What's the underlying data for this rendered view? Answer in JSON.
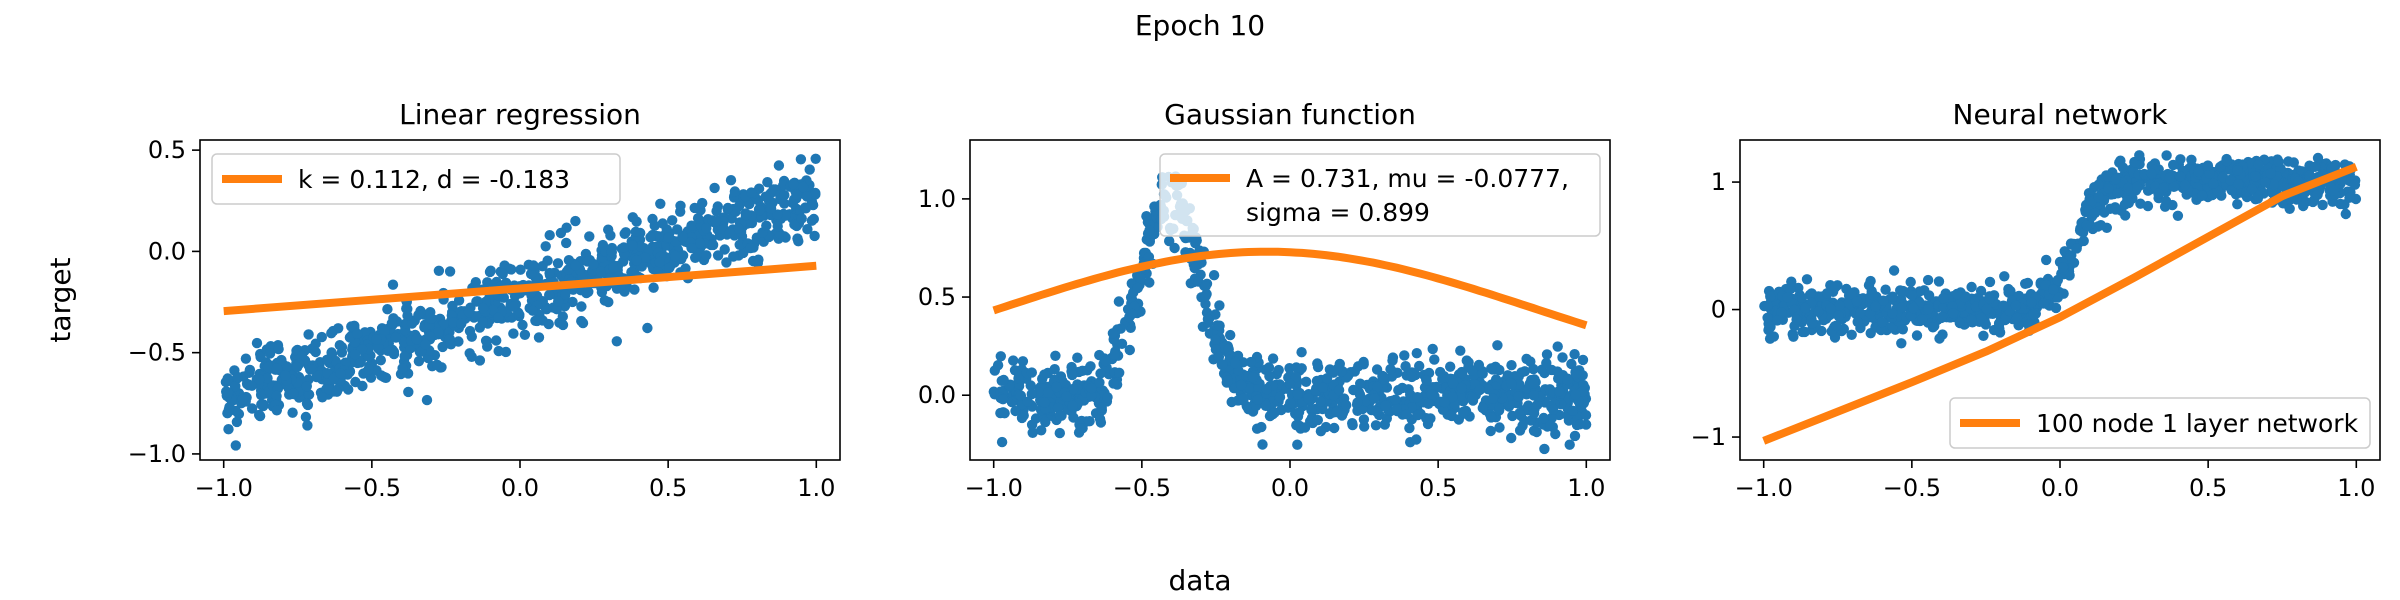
{
  "figure": {
    "suptitle": "Epoch 10",
    "shared_xlabel": "data",
    "shared_ylabel": "target"
  },
  "colors": {
    "scatter": "#1f77b4",
    "fit_line": "#ff7f0e",
    "axes": "#000000"
  },
  "chart_data": [
    {
      "type": "scatter",
      "title": "Linear regression",
      "xlim": [
        -1.08,
        1.08
      ],
      "ylim": [
        -1.03,
        0.55
      ],
      "xticks": [
        -1.0,
        -0.5,
        0.0,
        0.5,
        1.0
      ],
      "xtick_labels": [
        "−1.0",
        "−0.5",
        "0.0",
        "0.5",
        "1.0"
      ],
      "yticks": [
        -1.0,
        -0.5,
        0.0,
        0.5
      ],
      "ytick_labels": [
        "−1.0",
        "−0.5",
        "0.0",
        "0.5"
      ],
      "legend_position": "top-left",
      "series": [
        {
          "kind": "scatter",
          "x_range": [
            -1.0,
            1.0
          ],
          "n_points": 1000,
          "trend": "linear",
          "slope": 0.5,
          "intercept": -0.23,
          "noise_std": 0.09
        },
        {
          "kind": "line",
          "name": "k = 0.112, d = -0.183",
          "x": [
            -1.0,
            1.0
          ],
          "y": [
            -0.295,
            -0.071
          ]
        }
      ]
    },
    {
      "type": "scatter",
      "title": "Gaussian function",
      "xlim": [
        -1.08,
        1.08
      ],
      "ylim": [
        -0.33,
        1.3
      ],
      "xticks": [
        -1.0,
        -0.5,
        0.0,
        0.5,
        1.0
      ],
      "xtick_labels": [
        "−1.0",
        "−0.5",
        "0.0",
        "0.5",
        "1.0"
      ],
      "yticks": [
        0.0,
        0.5,
        1.0
      ],
      "ytick_labels": [
        "0.0",
        "0.5",
        "1.0"
      ],
      "legend_position": "top-right",
      "series": [
        {
          "kind": "scatter",
          "x_range": [
            -1.0,
            1.0
          ],
          "n_points": 1000,
          "trend": "gaussian",
          "amplitude": 1.0,
          "center": -0.4,
          "width": 0.1,
          "noise_std": 0.09
        },
        {
          "kind": "line",
          "name_lines": [
            "A = 0.731, mu = -0.0777,",
            "sigma = 0.899"
          ],
          "curve": "gaussian",
          "A": 0.731,
          "mu": -0.0777,
          "sigma": 0.899
        }
      ]
    },
    {
      "type": "scatter",
      "title": "Neural network",
      "xlim": [
        -1.08,
        1.08
      ],
      "ylim": [
        -1.18,
        1.33
      ],
      "xticks": [
        -1.0,
        -0.5,
        0.0,
        0.5,
        1.0
      ],
      "xtick_labels": [
        "−1.0",
        "−0.5",
        "0.0",
        "0.5",
        "1.0"
      ],
      "yticks": [
        -1,
        0,
        1
      ],
      "ytick_labels": [
        "−1",
        "0",
        "1"
      ],
      "legend_position": "bottom-right",
      "series": [
        {
          "kind": "scatter",
          "x_range": [
            -1.0,
            1.0
          ],
          "n_points": 1000,
          "trend": "sigmoid",
          "center": 0.05,
          "steepness": 22,
          "noise_std": 0.09
        },
        {
          "kind": "line",
          "name": "100 node 1 layer network",
          "x": [
            -1.0,
            -0.75,
            -0.5,
            -0.25,
            0.0,
            0.25,
            0.5,
            0.75,
            1.0
          ],
          "y": [
            -1.03,
            -0.8,
            -0.57,
            -0.33,
            -0.06,
            0.25,
            0.57,
            0.89,
            1.12
          ]
        }
      ]
    }
  ]
}
